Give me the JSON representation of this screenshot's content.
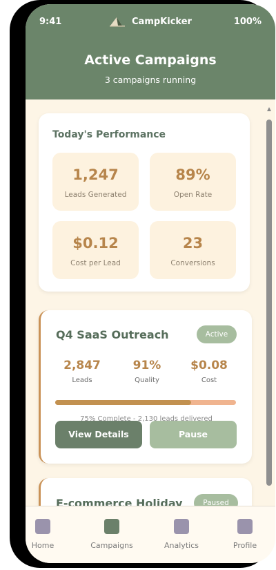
{
  "status": {
    "time": "9:41",
    "app_name": "CampKicker",
    "battery": "100%"
  },
  "header": {
    "title": "Active Campaigns",
    "subtitle": "3 campaigns running"
  },
  "performance": {
    "title": "Today's Performance",
    "stats": [
      {
        "value": "1,247",
        "label": "Leads Generated"
      },
      {
        "value": "89%",
        "label": "Open Rate"
      },
      {
        "value": "$0.12",
        "label": "Cost per Lead"
      },
      {
        "value": "23",
        "label": "Conversions"
      }
    ]
  },
  "campaigns": [
    {
      "name": "Q4 SaaS Outreach",
      "status": "Active",
      "metrics": [
        {
          "value": "2,847",
          "label": "Leads"
        },
        {
          "value": "91%",
          "label": "Quality"
        },
        {
          "value": "$0.08",
          "label": "Cost"
        }
      ],
      "progress_fraction": 0.75,
      "progress_text": "75% Complete - 2,130 leads delivered",
      "primary_action": "View Details",
      "secondary_action": "Pause"
    },
    {
      "name": "E-commerce Holiday",
      "status": "Paused"
    }
  ],
  "tabs": [
    {
      "label": "Home",
      "icon": "home-icon",
      "active": false
    },
    {
      "label": "Campaigns",
      "icon": "campaigns-icon",
      "active": true
    },
    {
      "label": "Analytics",
      "icon": "analytics-icon",
      "active": false
    },
    {
      "label": "Profile",
      "icon": "profile-icon",
      "active": false
    }
  ],
  "colors": {
    "header": "#6b856a",
    "accent": "#b7854b",
    "background": "#fdf5e6",
    "badge": "#a7bd9f"
  }
}
